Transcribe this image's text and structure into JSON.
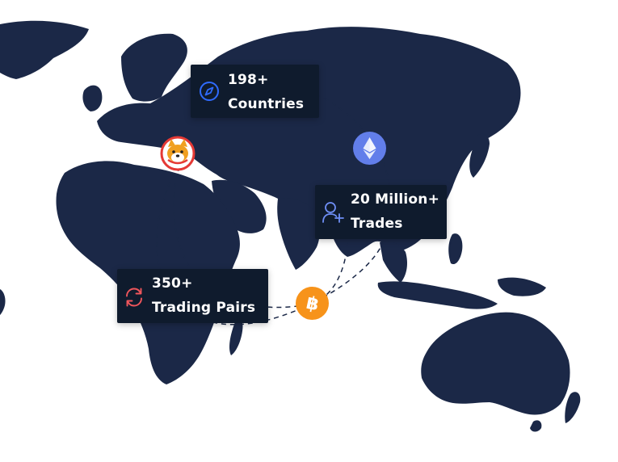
{
  "stats": {
    "countries": {
      "value": "198+",
      "label": "Countries",
      "icon": "compass-icon",
      "icon_color": "#2f6bff"
    },
    "trades": {
      "value": "20 Million+",
      "label": "Trades",
      "icon": "user-plus-icon",
      "icon_color": "#6f8ff7"
    },
    "pairs": {
      "value": "350+",
      "label": "Trading Pairs",
      "icon": "refresh-icon",
      "icon_color": "#f0565c"
    }
  },
  "coins": {
    "ethereum": {
      "icon": "ethereum-icon",
      "color": "#627eea"
    },
    "bitcoin": {
      "icon": "bitcoin-icon",
      "color": "#f7931a"
    },
    "shiba": {
      "icon": "shiba-inu-icon",
      "color": "#f0a020"
    }
  },
  "colors": {
    "map_land": "#1b2847",
    "card_bg": "#0f1b2d",
    "route_line": "#1b2847"
  }
}
